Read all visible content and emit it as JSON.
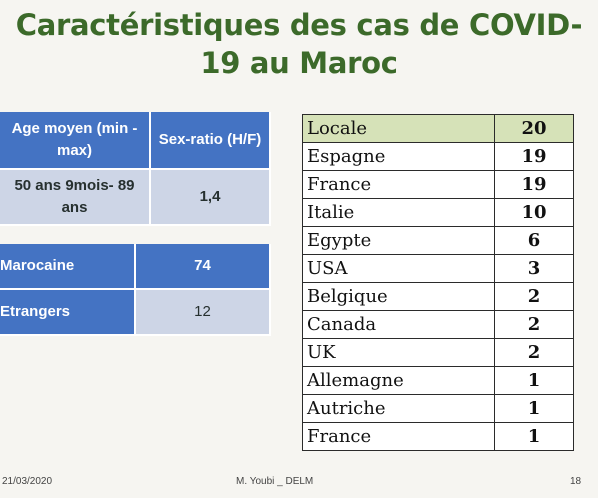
{
  "title": "Caractéristiques des cas de COVID-19 au Maroc",
  "demographics": {
    "header_age": "Age moyen (min - max)",
    "header_sex": "Sex-ratio (H/F)",
    "age_value": "50 ans 9mois- 89 ans",
    "sex_ratio": "1,4"
  },
  "nationality": [
    {
      "label": "Marocaine",
      "value": "74"
    },
    {
      "label": "Etrangers",
      "value": "12"
    }
  ],
  "origins": [
    {
      "country": "Locale",
      "count": "20"
    },
    {
      "country": "Espagne",
      "count": "19"
    },
    {
      "country": "France",
      "count": "19"
    },
    {
      "country": "Italie",
      "count": "10"
    },
    {
      "country": "Egypte",
      "count": "6"
    },
    {
      "country": "USA",
      "count": "3"
    },
    {
      "country": "Belgique",
      "count": "2"
    },
    {
      "country": "Canada",
      "count": "2"
    },
    {
      "country": "UK",
      "count": "2"
    },
    {
      "country": "Allemagne",
      "count": "1"
    },
    {
      "country": "Autriche",
      "count": "1"
    },
    {
      "country": "France",
      "count": "1"
    }
  ],
  "footer": {
    "date": "21/03/2020",
    "author": "M. Youbi _ DELM",
    "page": "18"
  },
  "colors": {
    "title": "#3c6a2a",
    "blue_cell": "#4473c3",
    "grey_cell": "#cdd5e6",
    "highlight_row": "#d6e2b8"
  }
}
